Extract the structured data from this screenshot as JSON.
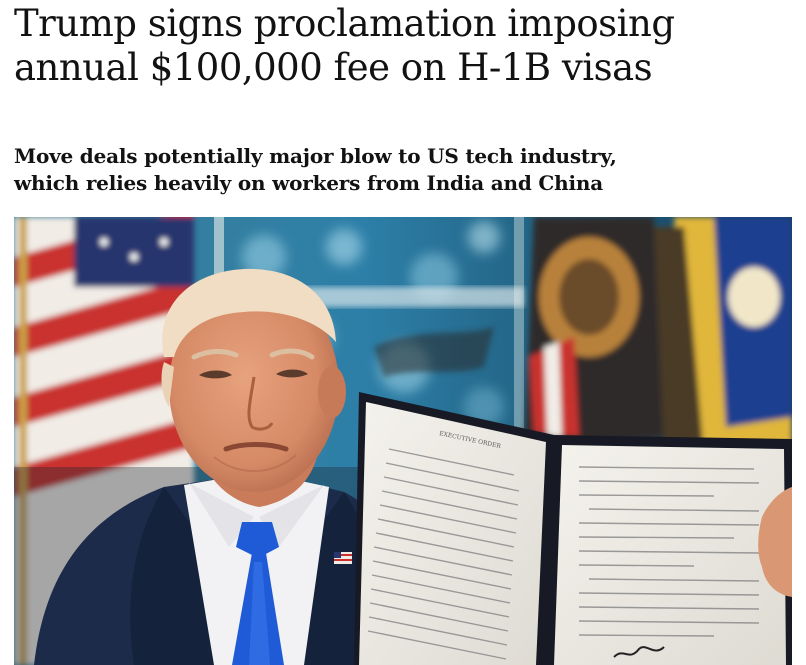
{
  "article": {
    "headline_line1": "Trump signs proclamation imposing",
    "headline_line2": "annual $100,000 fee on H-1B visas",
    "standfirst_line1": "Move deals potentially major blow to US tech industry,",
    "standfirst_line2": "which relies heavily on workers from India and China"
  },
  "photo": {
    "folder_heading": "EXECUTIVE ORDER"
  },
  "colors": {
    "text": "#121212",
    "background": "#ffffff",
    "tie": "#1f5bd6",
    "suit": "#1c2b4a",
    "folder": "#171a24"
  }
}
